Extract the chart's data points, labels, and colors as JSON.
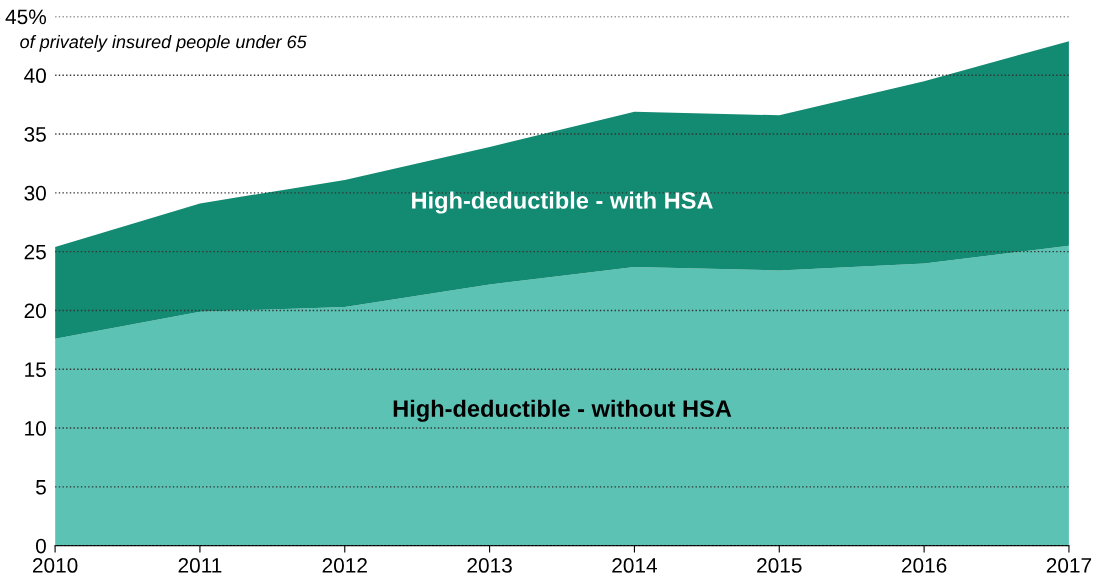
{
  "chart_data": {
    "type": "area",
    "stacked": true,
    "subtitle": "of privately insured people under 65",
    "x": [
      2010,
      2011,
      2012,
      2013,
      2014,
      2015,
      2016,
      2017
    ],
    "series": [
      {
        "name": "High-deductible - without HSA",
        "color": "#5bc2b4",
        "values": [
          17.6,
          19.9,
          20.3,
          22.2,
          23.7,
          23.4,
          24.0,
          25.5
        ]
      },
      {
        "name": "High-deductible - with HSA",
        "color": "#138a72",
        "values": [
          7.8,
          9.2,
          10.8,
          11.7,
          13.2,
          13.2,
          15.5,
          17.4
        ]
      }
    ],
    "xlim": [
      2010,
      2017
    ],
    "xticks": [
      2010,
      2011,
      2012,
      2013,
      2014,
      2015,
      2016,
      2017
    ],
    "ylim": [
      0,
      45
    ],
    "yticks": [
      0,
      5,
      10,
      15,
      20,
      25,
      30,
      35,
      40,
      {
        "value": 45,
        "label": "45%"
      }
    ],
    "grid": "y"
  }
}
